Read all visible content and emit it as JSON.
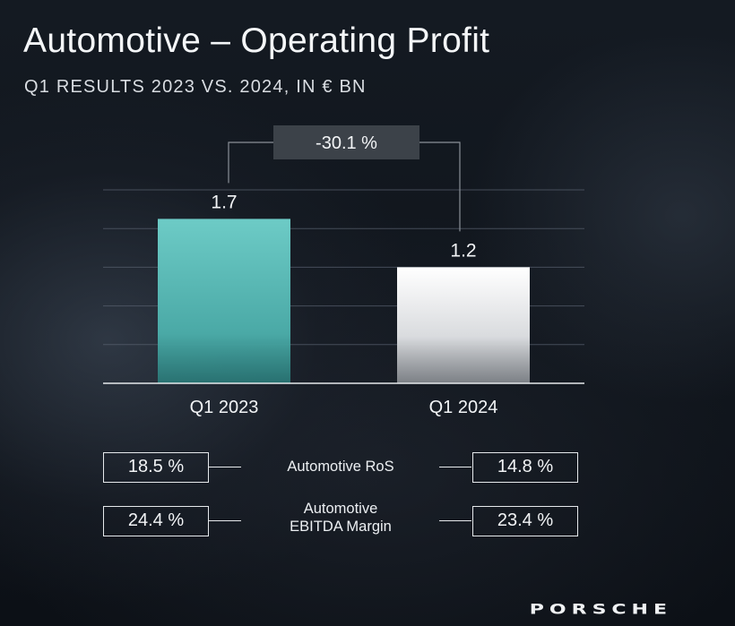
{
  "header": {
    "title": "Automotive – Operating Profit",
    "subtitle": "Q1 RESULTS 2023 VS. 2024, IN € BN"
  },
  "chart_data": {
    "type": "bar",
    "categories": [
      "Q1 2023",
      "Q1 2024"
    ],
    "values": [
      1.7,
      1.2
    ],
    "value_labels": [
      "1.7",
      "1.2"
    ],
    "change_label": "-30.1 %",
    "ylim": [
      0,
      2.0
    ],
    "grid": true,
    "legend": "none",
    "colors": {
      "bar_2023_top": "#6dcbc6",
      "bar_2023_bottom": "#2f8d8a",
      "bar_2024_top": "#ffffff",
      "bar_2024_bottom": "#9fa3a8",
      "grid": "#5a6270",
      "change_box": "#3c4249"
    }
  },
  "kpis": [
    {
      "label": "Automotive RoS",
      "label_lines": [
        "Automotive RoS"
      ],
      "left": "18.5 %",
      "right": "14.8 %"
    },
    {
      "label": "Automotive EBITDA Margin",
      "label_lines": [
        "Automotive",
        "EBITDA Margin"
      ],
      "left": "24.4 %",
      "right": "23.4 %"
    }
  ],
  "footer": {
    "logo": "PORSCHE"
  }
}
